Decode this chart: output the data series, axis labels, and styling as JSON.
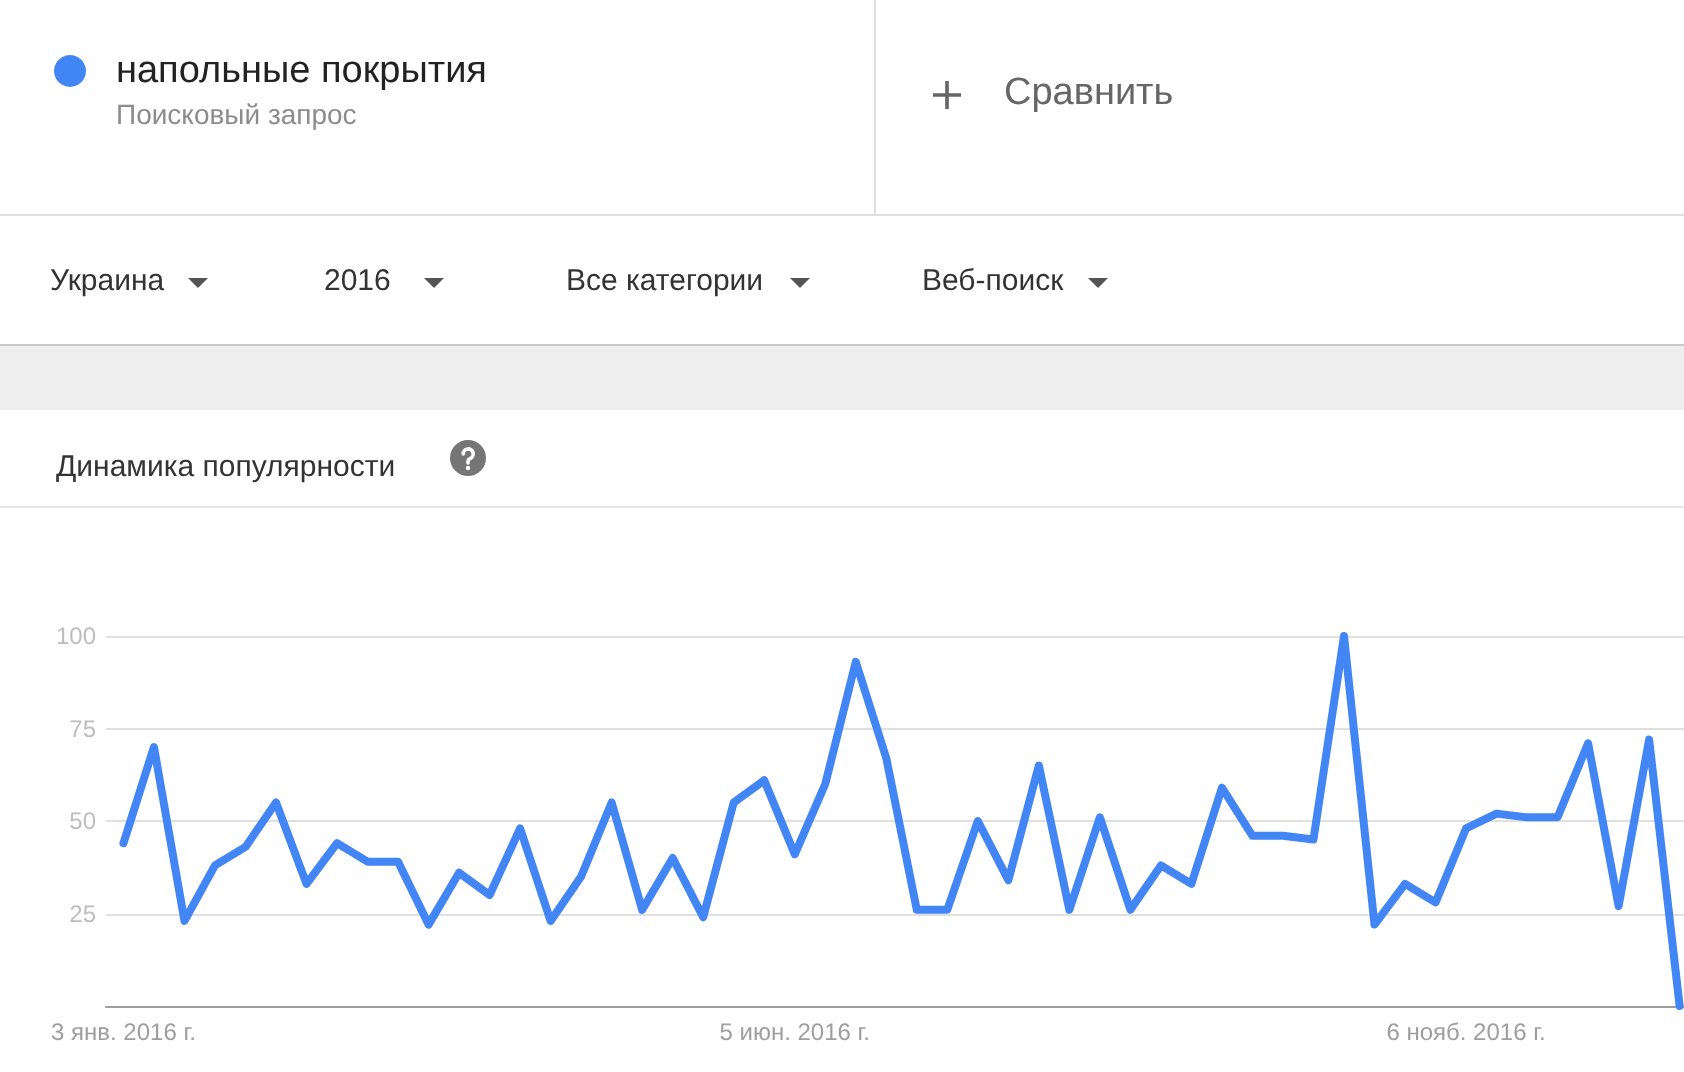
{
  "chart_data": {
    "type": "line",
    "title": "Динамика популярности",
    "annotations": [
      "Поисковый запрос",
      "Сравнить",
      "Украина",
      "2016",
      "Все категории",
      "Веб-поиск"
    ],
    "x": [
      "2016-01-03",
      "2016-01-10",
      "2016-01-17",
      "2016-01-24",
      "2016-01-31",
      "2016-02-07",
      "2016-02-14",
      "2016-02-21",
      "2016-02-28",
      "2016-03-06",
      "2016-03-13",
      "2016-03-20",
      "2016-03-27",
      "2016-04-03",
      "2016-04-10",
      "2016-04-17",
      "2016-04-24",
      "2016-05-01",
      "2016-05-08",
      "2016-05-15",
      "2016-05-22",
      "2016-05-29",
      "2016-06-05",
      "2016-06-12",
      "2016-06-19",
      "2016-06-26",
      "2016-07-03",
      "2016-07-10",
      "2016-07-17",
      "2016-07-24",
      "2016-07-31",
      "2016-08-07",
      "2016-08-14",
      "2016-08-21",
      "2016-08-28",
      "2016-09-04",
      "2016-09-11",
      "2016-09-18",
      "2016-09-25",
      "2016-10-02",
      "2016-10-09",
      "2016-10-16",
      "2016-10-23",
      "2016-10-30",
      "2016-11-06",
      "2016-11-13",
      "2016-11-20",
      "2016-11-27",
      "2016-12-04",
      "2016-12-11",
      "2016-12-18",
      "2016-12-25"
    ],
    "series": [
      {
        "name": "напольные покрытия",
        "color": "#4285f4",
        "values": [
          44,
          70,
          23,
          38,
          43,
          55,
          33,
          44,
          39,
          39,
          22,
          36,
          30,
          48,
          23,
          35,
          55,
          26,
          40,
          24,
          55,
          61,
          41,
          60,
          93,
          67,
          26,
          26,
          50,
          34,
          65,
          26,
          51,
          26,
          38,
          33,
          59,
          46,
          46,
          45,
          100,
          22,
          33,
          28,
          48,
          52,
          51,
          51,
          71,
          27,
          72,
          0
        ]
      }
    ],
    "xlim": [
      "2015-12-30",
      "2016-12-26"
    ],
    "xticks": [
      {
        "value": "2016-01-03",
        "label": "3 янв. 2016 г."
      },
      {
        "value": "2016-06-05",
        "label": "5 июн. 2016 г."
      },
      {
        "value": "2016-11-06",
        "label": "6 нояб. 2016 г."
      }
    ],
    "ylim": [
      0,
      100
    ],
    "yticks": [
      25,
      50,
      75,
      100
    ],
    "grid": "y",
    "legend": "top left",
    "line_style": "solid"
  }
}
